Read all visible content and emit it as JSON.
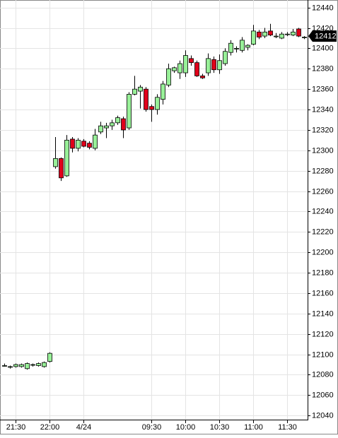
{
  "chart_data": {
    "type": "candlestick",
    "categories": [
      null,
      null,
      "21:30",
      null,
      null,
      null,
      null,
      null,
      "22:00",
      null,
      null,
      null,
      null,
      null,
      "4/24",
      null,
      null,
      null,
      null,
      null,
      null,
      null,
      null,
      null,
      null,
      null,
      "09:30",
      null,
      null,
      null,
      null,
      null,
      "10:00",
      null,
      null,
      null,
      null,
      null,
      "10:30",
      null,
      null,
      null,
      null,
      null,
      "11:00",
      null,
      null,
      null,
      null,
      null,
      "11:30",
      null,
      null,
      null
    ],
    "series": {
      "open": [
        12089,
        12088,
        12088,
        12088,
        12086,
        12090,
        12089,
        12088,
        12093,
        12284,
        12292,
        12275,
        12311,
        12302,
        12309,
        12307,
        12302,
        12318,
        12322,
        12324,
        12327,
        12331,
        12322,
        12355,
        12358,
        12360,
        12343,
        12340,
        12350,
        12364,
        12378,
        12376,
        12376,
        12390,
        12386,
        12373,
        12376,
        12389,
        12379,
        12385,
        12396,
        12400,
        12398,
        12401,
        12404,
        12416,
        12412,
        12417,
        12412,
        12410,
        12414,
        12413,
        12419,
        12411
      ],
      "high": [
        12091,
        12089,
        12091,
        12091,
        12092,
        12091,
        12092,
        12093,
        12102,
        12313,
        12293,
        12315,
        12313,
        12312,
        12311,
        12309,
        12321,
        12328,
        12327,
        12330,
        12334,
        12333,
        12357,
        12373,
        12364,
        12362,
        12345,
        12355,
        12368,
        12385,
        12382,
        12388,
        12398,
        12393,
        12388,
        12375,
        12395,
        12392,
        12394,
        12400,
        12408,
        12402,
        12411,
        12404,
        12423,
        12418,
        12420,
        12424,
        12415,
        12416,
        12416,
        12419,
        12420,
        12412
      ],
      "low": [
        12088,
        12086,
        12087,
        12087,
        12085,
        12088,
        12088,
        12087,
        12092,
        12282,
        12270,
        12274,
        12298,
        12299,
        12303,
        12301,
        12300,
        12316,
        12312,
        12320,
        12325,
        12312,
        12320,
        12354,
        12341,
        12338,
        12328,
        12335,
        12345,
        12362,
        12376,
        12370,
        12372,
        12383,
        12372,
        12370,
        12373,
        12376,
        12375,
        12383,
        12393,
        12396,
        12396,
        12398,
        12403,
        12409,
        12410,
        12412,
        12410,
        12409,
        12412,
        12412,
        12411,
        12409
      ],
      "close": [
        12089,
        12088,
        12090,
        12090,
        12091,
        12090,
        12091,
        12092,
        12101,
        12292,
        12273,
        12310,
        12302,
        12310,
        12304,
        12303,
        12315,
        12324,
        12324,
        12327,
        12332,
        12320,
        12355,
        12360,
        12362,
        12340,
        12340,
        12352,
        12365,
        12380,
        12381,
        12385,
        12393,
        12386,
        12373,
        12371,
        12390,
        12379,
        12388,
        12397,
        12405,
        12400,
        12408,
        12403,
        12417,
        12411,
        12416,
        12413,
        12412,
        12414,
        12414,
        12416,
        12412,
        12411
      ]
    },
    "up_color": "#98f098",
    "down_color": "#e0001b",
    "current_price": 12412,
    "ylim": [
      12036,
      12446
    ],
    "yticks": [
      12040,
      12060,
      12080,
      12100,
      12120,
      12140,
      12160,
      12180,
      12200,
      12220,
      12240,
      12260,
      12280,
      12300,
      12320,
      12340,
      12360,
      12380,
      12400,
      12420,
      12440
    ],
    "grid": true
  }
}
